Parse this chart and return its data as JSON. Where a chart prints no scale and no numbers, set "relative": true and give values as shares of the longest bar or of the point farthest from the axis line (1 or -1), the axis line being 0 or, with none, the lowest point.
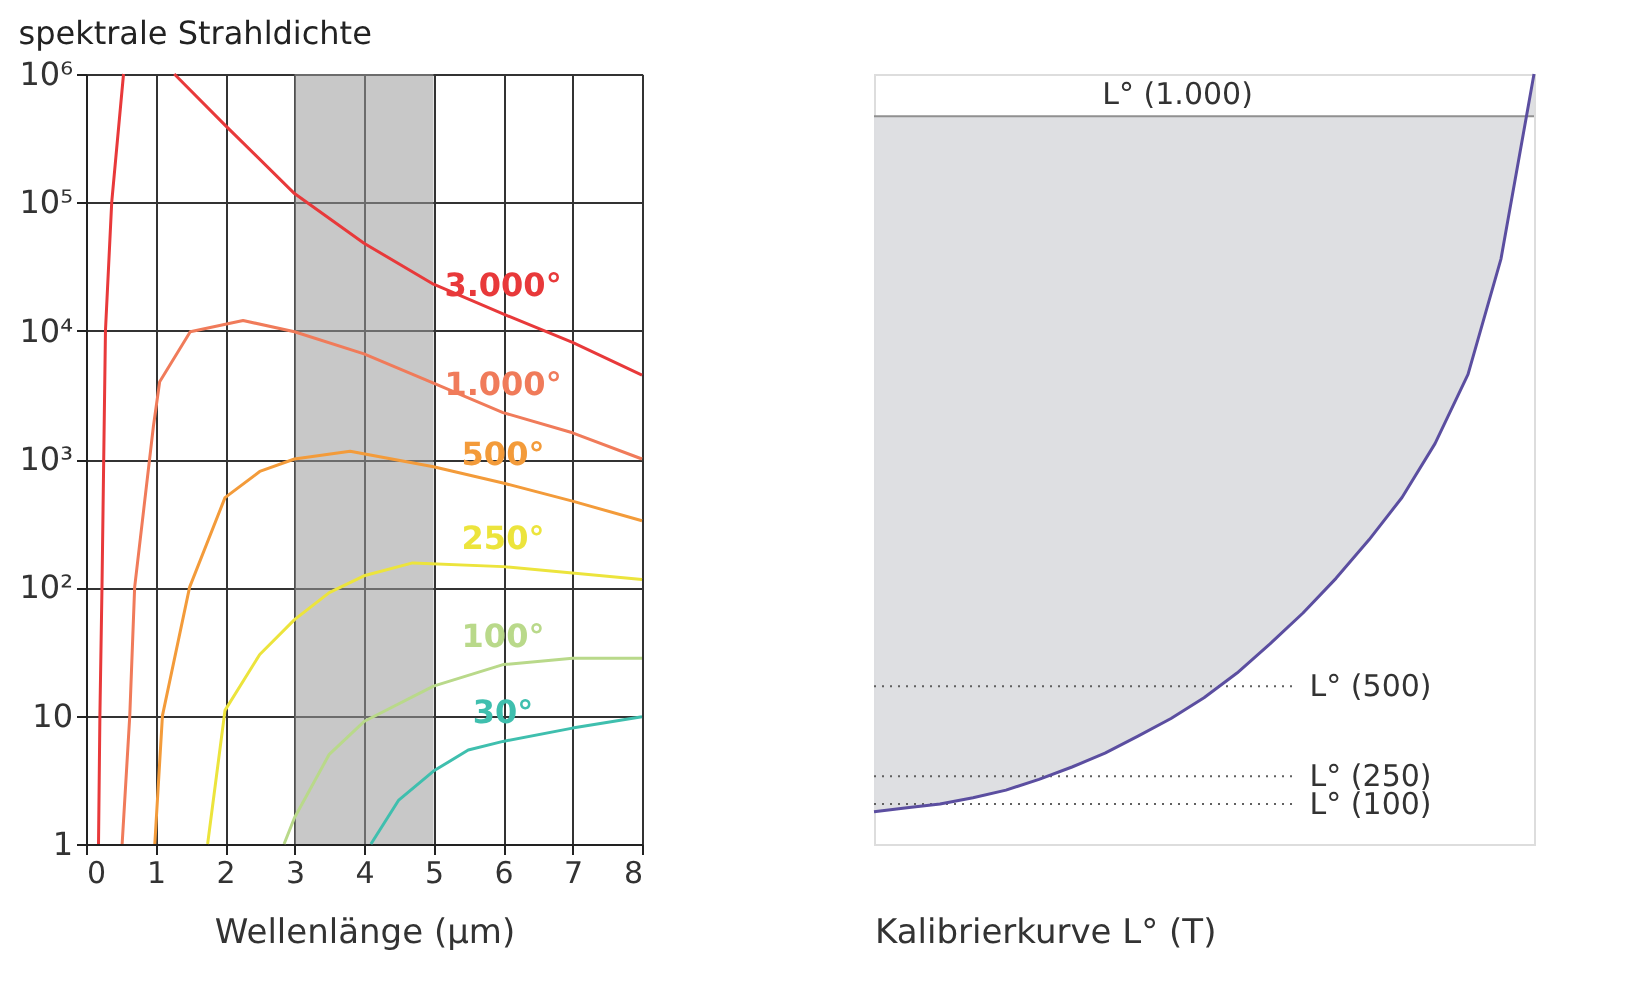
{
  "chart_data": [
    {
      "type": "line",
      "title": "spektrale Strahldichte",
      "xlabel": "Wellenlänge (µm)",
      "xlim": [
        0,
        8
      ],
      "xticks": [
        0,
        1,
        2,
        3,
        4,
        5,
        6,
        7,
        8
      ],
      "ylim": [
        1,
        1000000
      ],
      "log": true,
      "grid": true,
      "legend": false,
      "yticks": [
        1,
        10,
        {
          "value": 100,
          "label": "10²"
        },
        {
          "value": 1000,
          "label": "10³"
        },
        {
          "value": 10000,
          "label": "10⁴"
        },
        {
          "value": 100000,
          "label": "10⁵"
        },
        {
          "value": 1000000,
          "label": "10⁶"
        }
      ],
      "bands": [
        {
          "axis": "x",
          "from": 3,
          "to": 5,
          "color": "#9a9a9a"
        }
      ],
      "series": [
        {
          "name": "3.000°",
          "color": "#e8393a",
          "x": [
            0.18,
            0.2,
            0.23,
            0.28,
            0.37,
            0.54,
            0.9,
            1.27,
            2,
            3,
            4,
            5,
            6,
            7,
            8
          ],
          "values": [
            1,
            10,
            100,
            10000,
            100000,
            1000000,
            null,
            1000000,
            400000,
            117000,
            48000,
            23000,
            13500,
            8100,
            4500
          ]
        },
        {
          "name": "1.000°",
          "color": "#f07b5a",
          "x": [
            0.52,
            0.63,
            0.7,
            0.97,
            1.06,
            1.5,
            2.26,
            3,
            4,
            5,
            6,
            7,
            8
          ],
          "values": [
            1,
            10,
            100,
            1800,
            4000,
            9800,
            12000,
            9800,
            6600,
            3900,
            2300,
            1600,
            1000
          ]
        },
        {
          "name": "500°",
          "color": "#f39b3a",
          "x": [
            0.99,
            1.1,
            1.49,
            2,
            2.5,
            3,
            3.8,
            5,
            6,
            7,
            8
          ],
          "values": [
            1,
            10,
            100,
            500,
            800,
            1000,
            1150,
            870,
            650,
            470,
            330
          ]
        },
        {
          "name": "250°",
          "color": "#ece43c",
          "x": [
            1.75,
            2,
            2.5,
            3,
            3.5,
            4,
            4.7,
            6,
            8
          ],
          "values": [
            1,
            11,
            30,
            56,
            91,
            123,
            155,
            145,
            115
          ]
        },
        {
          "name": "100°",
          "color": "#b9d98a",
          "x": [
            2.85,
            3,
            3.5,
            4,
            5,
            6,
            7,
            8
          ],
          "values": [
            1,
            1.6,
            5,
            9,
            17,
            25,
            28,
            28
          ]
        },
        {
          "name": "30°",
          "color": "#3fbfae",
          "x": [
            4.1,
            4.5,
            5,
            5.5,
            6,
            7,
            8
          ],
          "values": [
            1,
            2.2,
            3.7,
            5.4,
            6.3,
            8,
            9.8
          ]
        }
      ]
    },
    {
      "type": "line",
      "relative": true,
      "xlabel": "Kalibrierkurve L° (T)",
      "tick_labels": false,
      "grid": false,
      "legend": false,
      "categories": [
        null,
        null,
        null,
        null,
        null,
        null,
        null,
        null,
        null,
        null,
        null,
        null,
        null,
        null,
        null,
        null,
        null,
        null,
        null,
        null,
        null
      ],
      "ref_lines": [
        {
          "axis": "y",
          "value": 0.945,
          "label": "L° (1.000)",
          "color": "#909090",
          "line_style": "solid"
        },
        {
          "axis": "y",
          "value": 0.205,
          "label": "L° (500)",
          "color": "#606060",
          "line_style": "dotted"
        },
        {
          "axis": "y",
          "value": 0.088,
          "label": "L° (250)",
          "color": "#606060",
          "line_style": "dotted"
        },
        {
          "axis": "y",
          "value": 0.052,
          "label": "L° (100)",
          "color": "#606060",
          "line_style": "dotted"
        }
      ],
      "series": [
        {
          "color": "#5b4ea0",
          "values": [
            0.042,
            0.047,
            0.052,
            0.06,
            0.07,
            0.084,
            0.1,
            0.118,
            0.14,
            0.163,
            0.19,
            0.222,
            0.26,
            0.3,
            0.345,
            0.395,
            0.45,
            0.52,
            0.61,
            0.76,
            1
          ]
        }
      ]
    }
  ]
}
